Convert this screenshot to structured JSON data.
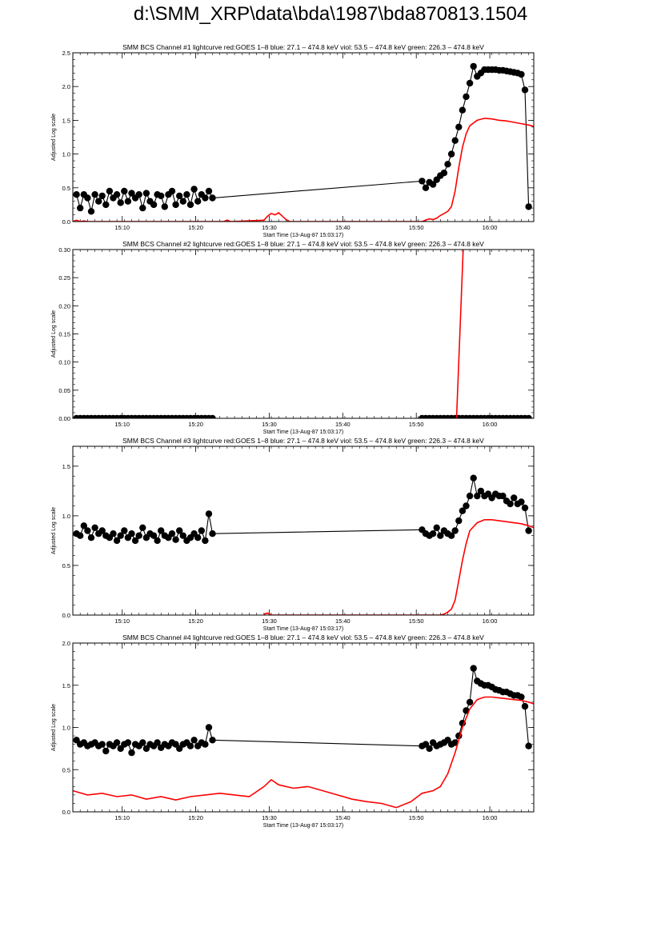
{
  "page_title": "d:\\SMM_XRP\\data\\bda\\1987\\bda870813.1504",
  "colors": {
    "counts": "#000000",
    "goes": "#ff0000",
    "axes": "#000000"
  },
  "chart_data": [
    {
      "type": "scatter",
      "title": "SMM BCS Channel #1 lightcurve  red:GOES 1–8  blue: 27.1 – 474.8 keV  viol: 53.5 – 474.8 keV  green: 226.3 – 474.8 keV",
      "xlabel": "Start Time (13-Aug-87 15:03:17)",
      "ylabel": "Adjusted Log scale",
      "x_unit": "minutes after 15:03:17",
      "xlim": [
        0,
        62.7
      ],
      "ylim": [
        0,
        2.5
      ],
      "x_ticks": [
        6.72,
        16.72,
        26.72,
        36.72,
        46.72,
        56.72
      ],
      "x_tick_labels": [
        "15:10",
        "15:20",
        "15:30",
        "15:40",
        "15:50",
        "16:00"
      ],
      "y_ticks": [
        0.0,
        0.5,
        1.0,
        1.5,
        2.0,
        2.5
      ],
      "y_tick_labels": [
        "0.0",
        "0.5",
        "1.0",
        "1.5",
        "2.0",
        "2.5"
      ],
      "series": [
        {
          "style": "points-line",
          "color": "#000000",
          "x": [
            0.5,
            1.0,
            1.5,
            2.0,
            2.5,
            3.0,
            3.5,
            4.0,
            4.5,
            5.0,
            5.5,
            6.0,
            6.5,
            7.0,
            7.5,
            8.0,
            8.5,
            9.0,
            9.5,
            10.0,
            10.5,
            11.0,
            11.5,
            12.0,
            12.5,
            13.0,
            13.5,
            14.0,
            14.5,
            15.0,
            15.5,
            16.0,
            16.5,
            17.0,
            17.5,
            18.0,
            18.5,
            19.0,
            47.5,
            48.0,
            48.5,
            49.0,
            49.5,
            50.0,
            50.5,
            51.0,
            51.5,
            52.0,
            52.5,
            53.0,
            53.5,
            54.0,
            54.5,
            55.0,
            55.5,
            56.0,
            56.5,
            57.0,
            57.5,
            58.0,
            58.5,
            59.0,
            59.5,
            60.0,
            60.5,
            61.0,
            61.5,
            62.0
          ],
          "y": [
            0.4,
            0.2,
            0.4,
            0.35,
            0.15,
            0.4,
            0.3,
            0.38,
            0.25,
            0.45,
            0.35,
            0.4,
            0.28,
            0.45,
            0.3,
            0.42,
            0.35,
            0.4,
            0.2,
            0.42,
            0.3,
            0.25,
            0.4,
            0.38,
            0.22,
            0.4,
            0.45,
            0.25,
            0.38,
            0.3,
            0.4,
            0.25,
            0.48,
            0.3,
            0.4,
            0.35,
            0.45,
            0.35,
            0.6,
            0.5,
            0.58,
            0.55,
            0.62,
            0.68,
            0.72,
            0.85,
            1.0,
            1.2,
            1.4,
            1.65,
            1.85,
            2.05,
            2.3,
            2.15,
            2.2,
            2.25,
            2.25,
            2.25,
            2.25,
            2.24,
            2.24,
            2.23,
            2.22,
            2.21,
            2.2,
            2.18,
            1.95,
            0.22
          ]
        },
        {
          "style": "line",
          "color": "#ff0000",
          "x": [
            0.0,
            0.5,
            1.0,
            1.5,
            2.0,
            20.5,
            21.0,
            21.5,
            26.0,
            26.5,
            27.0,
            27.5,
            28.0,
            28.5,
            29.0,
            29.5,
            47.5,
            48.0,
            48.5,
            49.0,
            49.5,
            50.0,
            50.5,
            51.0,
            51.5,
            52.0,
            52.5,
            53.0,
            53.5,
            54.0,
            55.0,
            56.0,
            57.0,
            58.0,
            59.0,
            60.0,
            61.0,
            62.0,
            62.7
          ],
          "y": [
            0.0,
            0.02,
            0.0,
            0.01,
            0.0,
            0.0,
            0.02,
            0.0,
            0.02,
            0.08,
            0.12,
            0.1,
            0.13,
            0.08,
            0.03,
            0.0,
            0.0,
            0.02,
            0.04,
            0.03,
            0.05,
            0.09,
            0.12,
            0.15,
            0.22,
            0.45,
            0.8,
            1.1,
            1.3,
            1.42,
            1.5,
            1.53,
            1.52,
            1.5,
            1.49,
            1.47,
            1.45,
            1.43,
            1.41
          ]
        }
      ]
    },
    {
      "type": "scatter",
      "title": "SMM BCS Channel #2 lightcurve  red:GOES 1–8  blue: 27.1 – 474.8 keV  viol: 53.5 – 474.8 keV  green: 226.3 – 474.8 keV",
      "xlabel": "Start Time (13-Aug-87 15:03:17)",
      "ylabel": "Adjusted Log scale",
      "x_unit": "minutes after 15:03:17",
      "xlim": [
        0,
        62.7
      ],
      "ylim": [
        0,
        0.3
      ],
      "x_ticks": [
        6.72,
        16.72,
        26.72,
        36.72,
        46.72,
        56.72
      ],
      "x_tick_labels": [
        "15:10",
        "15:20",
        "15:30",
        "15:40",
        "15:50",
        "16:00"
      ],
      "y_ticks": [
        0.0,
        0.05,
        0.1,
        0.15,
        0.2,
        0.25,
        0.3
      ],
      "y_tick_labels": [
        "0.00",
        "0.05",
        "0.10",
        "0.15",
        "0.20",
        "0.25",
        "0.30"
      ],
      "series": [
        {
          "style": "points-line",
          "color": "#000000",
          "x": [
            0.5,
            1.0,
            1.5,
            2.0,
            2.5,
            3.0,
            3.5,
            4.0,
            4.5,
            5.0,
            5.5,
            6.0,
            6.5,
            7.0,
            7.5,
            8.0,
            8.5,
            9.0,
            9.5,
            10.0,
            10.5,
            11.0,
            11.5,
            12.0,
            12.5,
            13.0,
            13.5,
            14.0,
            14.5,
            15.0,
            15.5,
            16.0,
            16.5,
            17.0,
            17.5,
            18.0,
            18.5,
            19.0,
            47.5,
            48.0,
            48.5,
            49.0,
            49.5,
            50.0,
            50.5,
            51.0,
            51.5,
            52.0,
            52.5,
            53.0,
            53.5,
            54.0,
            54.5,
            55.0,
            55.5,
            56.0,
            56.5,
            57.0,
            57.5,
            58.0,
            58.5,
            59.0,
            59.5,
            60.0,
            60.5,
            61.0,
            61.5,
            62.0
          ],
          "y": [
            0,
            0,
            0,
            0,
            0,
            0,
            0,
            0,
            0,
            0,
            0,
            0,
            0,
            0,
            0,
            0,
            0,
            0,
            0,
            0,
            0,
            0,
            0,
            0,
            0,
            0,
            0,
            0,
            0,
            0,
            0,
            0,
            0,
            0,
            0,
            0,
            0,
            0,
            0,
            0,
            0,
            0,
            0,
            0,
            0,
            0,
            0,
            0,
            0,
            0,
            0,
            0,
            0,
            0,
            0,
            0,
            0,
            0,
            0,
            0,
            0,
            0,
            0,
            0,
            0,
            0,
            0,
            0
          ]
        },
        {
          "style": "line",
          "color": "#ff0000",
          "x": [
            52.2,
            53.1
          ],
          "y": [
            0.0,
            0.3
          ]
        }
      ]
    },
    {
      "type": "scatter",
      "title": "SMM BCS Channel #3 lightcurve  red:GOES 1–8  blue: 27.1 – 474.8 keV  viol: 53.5 – 474.8 keV  green: 226.3 – 474.8 keV",
      "xlabel": "Start Time (13-Aug-87 15:03:17)",
      "ylabel": "Adjusted Log scale",
      "x_unit": "minutes after 15:03:17",
      "xlim": [
        0,
        62.7
      ],
      "ylim": [
        0,
        1.7
      ],
      "x_ticks": [
        6.72,
        16.72,
        26.72,
        36.72,
        46.72,
        56.72
      ],
      "x_tick_labels": [
        "15:10",
        "15:20",
        "15:30",
        "15:40",
        "15:50",
        "16:00"
      ],
      "y_ticks": [
        0.0,
        0.5,
        1.0,
        1.5
      ],
      "y_tick_labels": [
        "0.0",
        "0.5",
        "1.0",
        "1.5"
      ],
      "series": [
        {
          "style": "points-line",
          "color": "#000000",
          "x": [
            0.5,
            1.0,
            1.5,
            2.0,
            2.5,
            3.0,
            3.5,
            4.0,
            4.5,
            5.0,
            5.5,
            6.0,
            6.5,
            7.0,
            7.5,
            8.0,
            8.5,
            9.0,
            9.5,
            10.0,
            10.5,
            11.0,
            11.5,
            12.0,
            12.5,
            13.0,
            13.5,
            14.0,
            14.5,
            15.0,
            15.5,
            16.0,
            16.5,
            17.0,
            17.5,
            18.0,
            18.5,
            19.0,
            47.5,
            48.0,
            48.5,
            49.0,
            49.5,
            50.0,
            50.5,
            51.0,
            51.5,
            52.0,
            52.5,
            53.0,
            53.5,
            54.0,
            54.5,
            55.0,
            55.5,
            56.0,
            56.5,
            57.0,
            57.5,
            58.0,
            58.5,
            59.0,
            59.5,
            60.0,
            60.5,
            61.0,
            61.5,
            62.0
          ],
          "y": [
            0.82,
            0.8,
            0.9,
            0.85,
            0.78,
            0.88,
            0.82,
            0.85,
            0.8,
            0.78,
            0.82,
            0.75,
            0.8,
            0.85,
            0.78,
            0.82,
            0.75,
            0.8,
            0.88,
            0.78,
            0.82,
            0.8,
            0.75,
            0.85,
            0.8,
            0.78,
            0.82,
            0.76,
            0.85,
            0.8,
            0.75,
            0.78,
            0.82,
            0.78,
            0.85,
            0.75,
            1.02,
            0.82,
            0.86,
            0.82,
            0.8,
            0.82,
            0.88,
            0.8,
            0.85,
            0.82,
            0.8,
            0.85,
            0.95,
            1.05,
            1.1,
            1.2,
            1.38,
            1.2,
            1.25,
            1.2,
            1.22,
            1.18,
            1.22,
            1.2,
            1.2,
            1.15,
            1.12,
            1.18,
            1.12,
            1.14,
            1.08,
            0.85
          ]
        },
        {
          "style": "line",
          "color": "#ff0000",
          "x": [
            26.0,
            26.5,
            27.0,
            50.0,
            50.5,
            51.0,
            51.5,
            52.0,
            52.5,
            53.0,
            53.5,
            54.0,
            55.0,
            56.0,
            57.0,
            58.0,
            59.0,
            60.0,
            61.0,
            62.0,
            62.7
          ],
          "y": [
            0.01,
            0.02,
            0.0,
            0.0,
            0.01,
            0.03,
            0.06,
            0.15,
            0.35,
            0.55,
            0.72,
            0.85,
            0.93,
            0.96,
            0.96,
            0.95,
            0.94,
            0.93,
            0.92,
            0.9,
            0.88
          ]
        }
      ]
    },
    {
      "type": "scatter",
      "title": "SMM BCS Channel #4 lightcurve  red:GOES 1–8  blue: 27.1 – 474.8 keV  viol: 53.5 – 474.8 keV  green: 226.3 – 474.8 keV",
      "xlabel": "Start Time (13-Aug-87 15:03:17)",
      "ylabel": "Adjusted Log scale",
      "x_unit": "minutes after 15:03:17",
      "xlim": [
        0,
        62.7
      ],
      "ylim": [
        0,
        2.0
      ],
      "x_ticks": [
        6.72,
        16.72,
        26.72,
        36.72,
        46.72,
        56.72
      ],
      "x_tick_labels": [
        "15:10",
        "15:20",
        "15:30",
        "15:40",
        "15:50",
        "16:00"
      ],
      "y_ticks": [
        0.0,
        0.5,
        1.0,
        1.5,
        2.0
      ],
      "y_tick_labels": [
        "0.0",
        "0.5",
        "1.0",
        "1.5",
        "2.0"
      ],
      "series": [
        {
          "style": "points-line",
          "color": "#000000",
          "x": [
            0.5,
            1.0,
            1.5,
            2.0,
            2.5,
            3.0,
            3.5,
            4.0,
            4.5,
            5.0,
            5.5,
            6.0,
            6.5,
            7.0,
            7.5,
            8.0,
            8.5,
            9.0,
            9.5,
            10.0,
            10.5,
            11.0,
            11.5,
            12.0,
            12.5,
            13.0,
            13.5,
            14.0,
            14.5,
            15.0,
            15.5,
            16.0,
            16.5,
            17.0,
            17.5,
            18.0,
            18.5,
            19.0,
            47.5,
            48.0,
            48.5,
            49.0,
            49.5,
            50.0,
            50.5,
            51.0,
            51.5,
            52.0,
            52.5,
            53.0,
            53.5,
            54.0,
            54.5,
            55.0,
            55.5,
            56.0,
            56.5,
            57.0,
            57.5,
            58.0,
            58.5,
            59.0,
            59.5,
            60.0,
            60.5,
            61.0,
            61.5,
            62.0
          ],
          "y": [
            0.85,
            0.8,
            0.82,
            0.78,
            0.8,
            0.82,
            0.78,
            0.8,
            0.72,
            0.8,
            0.78,
            0.82,
            0.75,
            0.8,
            0.82,
            0.7,
            0.8,
            0.78,
            0.82,
            0.75,
            0.8,
            0.78,
            0.82,
            0.76,
            0.8,
            0.78,
            0.82,
            0.8,
            0.75,
            0.8,
            0.82,
            0.78,
            0.85,
            0.78,
            0.82,
            0.8,
            1.0,
            0.85,
            0.78,
            0.8,
            0.75,
            0.82,
            0.78,
            0.8,
            0.82,
            0.85,
            0.8,
            0.82,
            0.9,
            1.05,
            1.2,
            1.3,
            1.7,
            1.55,
            1.52,
            1.5,
            1.5,
            1.48,
            1.45,
            1.44,
            1.42,
            1.42,
            1.4,
            1.38,
            1.38,
            1.36,
            1.25,
            0.78
          ]
        },
        {
          "style": "line",
          "color": "#ff0000",
          "x": [
            0.0,
            2.0,
            4.0,
            6.0,
            8.0,
            10.0,
            12.0,
            14.0,
            16.0,
            18.0,
            20.0,
            22.0,
            24.0,
            26.0,
            27.0,
            28.0,
            30.0,
            32.0,
            34.0,
            36.0,
            38.0,
            40.0,
            42.0,
            44.0,
            46.0,
            47.5,
            49.0,
            50.0,
            51.0,
            52.0,
            53.0,
            54.0,
            55.0,
            56.0,
            57.0,
            58.0,
            59.0,
            60.0,
            61.0,
            62.0,
            62.7
          ],
          "y": [
            0.25,
            0.2,
            0.22,
            0.18,
            0.2,
            0.15,
            0.18,
            0.14,
            0.18,
            0.2,
            0.22,
            0.2,
            0.18,
            0.3,
            0.38,
            0.32,
            0.28,
            0.3,
            0.25,
            0.2,
            0.15,
            0.12,
            0.1,
            0.05,
            0.12,
            0.22,
            0.25,
            0.3,
            0.45,
            0.7,
            1.0,
            1.22,
            1.33,
            1.36,
            1.36,
            1.35,
            1.34,
            1.33,
            1.32,
            1.3,
            1.28
          ]
        }
      ]
    }
  ]
}
